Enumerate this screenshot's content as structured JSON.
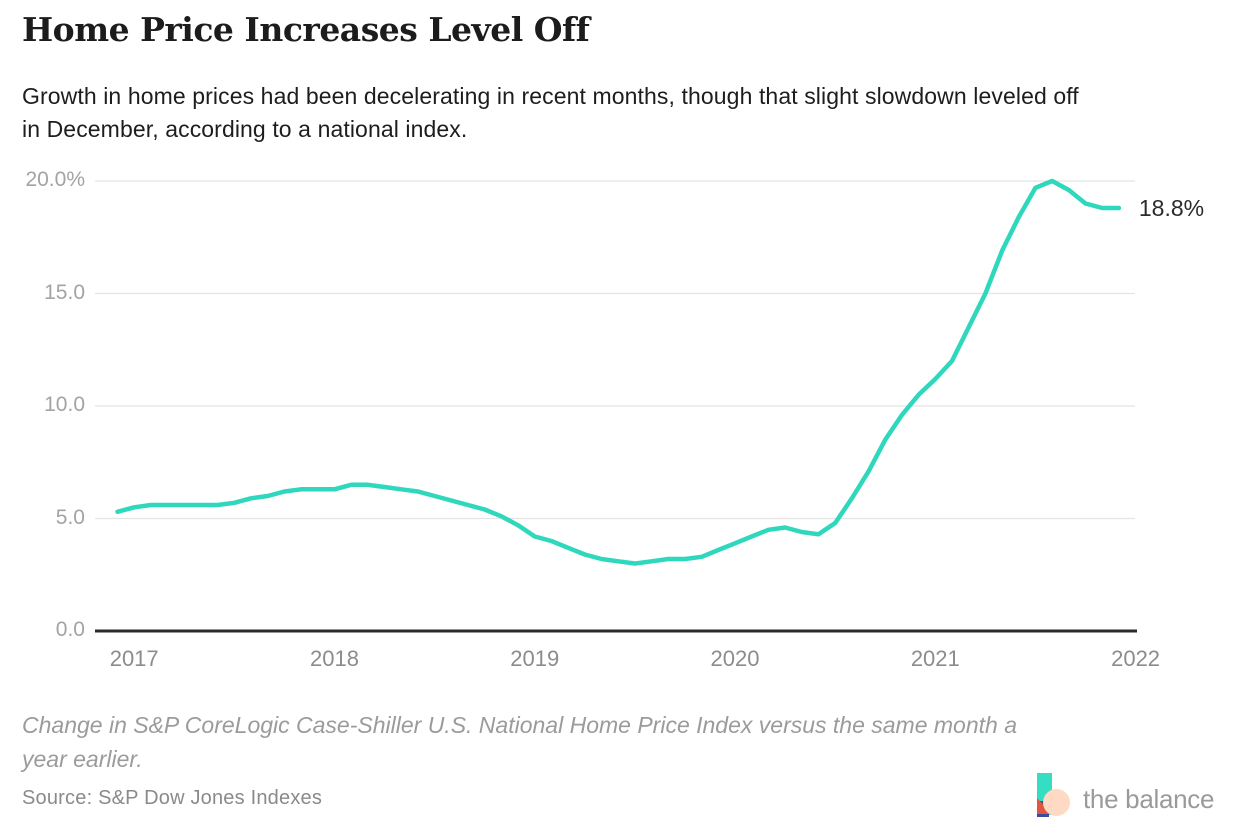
{
  "header": {
    "title": "Home Price Increases Level Off",
    "subtitle": "Growth in home prices had been decelerating in recent months, though that slight slowdown leveled off in December, according to a national index."
  },
  "chart_data": {
    "type": "line",
    "title": "Home Price Increases Level Off",
    "x_start": "Dec 2016",
    "x_end": "Dec 2021",
    "frequency": "monthly",
    "x_tick_labels": [
      "2017",
      "2018",
      "2019",
      "2020",
      "2021",
      "2022"
    ],
    "y_ticks": [
      {
        "label": "20.0%",
        "value": 20
      },
      {
        "label": "15.0",
        "value": 15
      },
      {
        "label": "10.0",
        "value": 10
      },
      {
        "label": "5.0",
        "value": 5
      },
      {
        "label": "0.0",
        "value": 0
      }
    ],
    "ylim": [
      0,
      20
    ],
    "grid": "horizontal",
    "legend": "none",
    "line_color": "#2fd7bd",
    "end_label": "18.8%",
    "end_value": 18.8,
    "series": [
      {
        "name": "Change in S&P CoreLogic Case-Shiller U.S. National Home Price Index vs. same month a year earlier (%)",
        "values": [
          5.3,
          5.5,
          5.6,
          5.6,
          5.6,
          5.6,
          5.6,
          5.7,
          5.9,
          6.0,
          6.2,
          6.3,
          6.3,
          6.3,
          6.5,
          6.5,
          6.4,
          6.3,
          6.2,
          6.0,
          5.8,
          5.6,
          5.4,
          5.1,
          4.7,
          4.2,
          4.0,
          3.7,
          3.4,
          3.2,
          3.1,
          3.0,
          3.1,
          3.2,
          3.2,
          3.3,
          3.6,
          3.9,
          4.2,
          4.5,
          4.6,
          4.4,
          4.3,
          4.8,
          5.9,
          7.1,
          8.5,
          9.6,
          10.5,
          11.2,
          12.0,
          13.5,
          15.0,
          16.9,
          18.4,
          19.7,
          20.0,
          19.6,
          19.0,
          18.8,
          18.8
        ]
      }
    ]
  },
  "footer": {
    "note": "Change in S&P CoreLogic Case-Shiller U.S. National Home Price Index versus the same month a year earlier.",
    "source": "Source: S&P Dow Jones Indexes",
    "logo_text": "the balance",
    "logo_colors": {
      "teal": "#35ddc3",
      "peach": "#fed9c4",
      "red": "#e25540",
      "navy": "#3d4b9c"
    }
  }
}
